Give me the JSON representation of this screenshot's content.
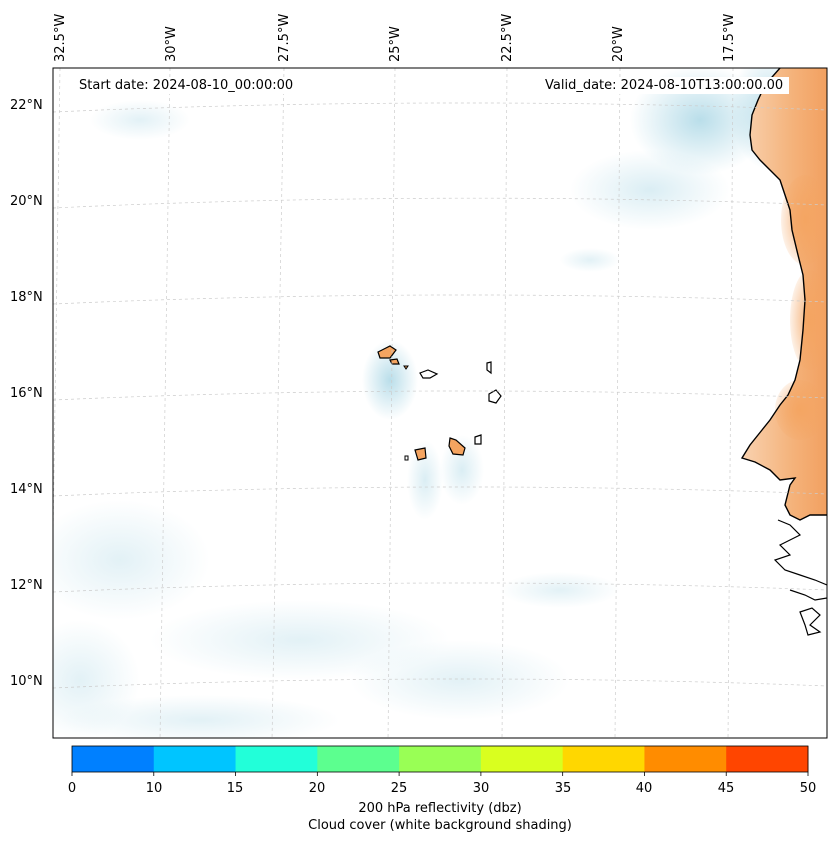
{
  "map": {
    "start_date": "Start date: 2024-08-10_00:00:00",
    "valid_date": "Valid_date: 2024-08-10T13:00:00.00",
    "lon_labels": [
      "32.5°W",
      "30°W",
      "27.5°W",
      "25°W",
      "22.5°W",
      "20°W",
      "17.5°W"
    ],
    "lat_labels": [
      "22°N",
      "20°N",
      "18°N",
      "16°N",
      "14°N",
      "12°N",
      "10°N"
    ],
    "extent": {
      "lon_min": -32.9,
      "lon_max": -15.8,
      "lat_min": 8.9,
      "lat_max": 22.7
    },
    "land_color": "#f4a460",
    "cloud_color": "#add8e6"
  },
  "colorbar": {
    "ticks": [
      "0",
      "10",
      "15",
      "20",
      "25",
      "30",
      "35",
      "40",
      "45",
      "50"
    ],
    "colors": [
      "#0080ff",
      "#00c5ff",
      "#22ffd9",
      "#5cff8f",
      "#99ff55",
      "#d9ff1f",
      "#ffd700",
      "#ff8c00",
      "#ff4500"
    ],
    "label": "200 hPa reflectivity (dbz)",
    "sublabel": "Cloud cover (white background shading)"
  }
}
